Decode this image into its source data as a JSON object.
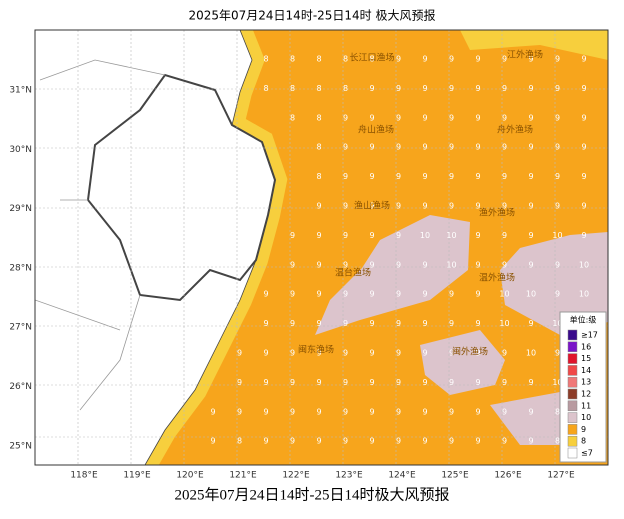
{
  "header": {
    "title": "2025年07月24日14时-25日14时 极大风预报"
  },
  "caption": "2025年07月24日14时-25日14时极大风预报",
  "lon_labels": [
    "118°E",
    "119°E",
    "120°E",
    "121°E",
    "122°E",
    "123°E",
    "124°E",
    "125°E",
    "126°E",
    "127°E"
  ],
  "lat_labels": [
    "31°N",
    "30°N",
    "29°N",
    "28°N",
    "27°N",
    "26°N",
    "25°N"
  ],
  "zones": [
    "长江口渔场",
    "江外渔场",
    "舟山渔场",
    "舟外渔场",
    "渔山渔场",
    "渔外渔场",
    "温台渔场",
    "温外渔场",
    "闽东渔场",
    "闽外渔场"
  ],
  "grid_values": [
    [
      null,
      null,
      8,
      8,
      8,
      8,
      8,
      9,
      9,
      9,
      9,
      9,
      9,
      9,
      9
    ],
    [
      null,
      null,
      8,
      8,
      8,
      8,
      9,
      9,
      9,
      9,
      9,
      9,
      9,
      9,
      9
    ],
    [
      null,
      null,
      null,
      8,
      8,
      9,
      9,
      9,
      9,
      9,
      9,
      9,
      9,
      9,
      9
    ],
    [
      null,
      null,
      null,
      null,
      8,
      9,
      9,
      9,
      9,
      9,
      9,
      9,
      9,
      9,
      9
    ],
    [
      null,
      null,
      null,
      null,
      8,
      9,
      9,
      9,
      9,
      9,
      9,
      9,
      9,
      9,
      9
    ],
    [
      null,
      null,
      null,
      null,
      9,
      9,
      9,
      9,
      9,
      9,
      9,
      9,
      9,
      9,
      9
    ],
    [
      null,
      null,
      null,
      9,
      9,
      9,
      9,
      9,
      10,
      10,
      9,
      9,
      9,
      10,
      9
    ],
    [
      null,
      null,
      null,
      9,
      9,
      9,
      9,
      9,
      9,
      10,
      9,
      9,
      9,
      9,
      10
    ],
    [
      null,
      null,
      9,
      9,
      9,
      9,
      9,
      9,
      9,
      9,
      9,
      10,
      10,
      9,
      10
    ],
    [
      null,
      null,
      9,
      9,
      9,
      9,
      9,
      9,
      9,
      9,
      9,
      10,
      9,
      10,
      9
    ],
    [
      null,
      9,
      9,
      9,
      9,
      9,
      9,
      9,
      9,
      9,
      9,
      9,
      10,
      9,
      9
    ],
    [
      null,
      9,
      9,
      9,
      9,
      9,
      9,
      9,
      9,
      9,
      9,
      9,
      9,
      10,
      9
    ],
    [
      9,
      9,
      9,
      9,
      9,
      9,
      9,
      9,
      9,
      9,
      9,
      9,
      9,
      8,
      9
    ],
    [
      9,
      8,
      9,
      9,
      9,
      9,
      9,
      9,
      9,
      9,
      9,
      9,
      9,
      8,
      9
    ]
  ],
  "legend": {
    "title": "单位:级",
    "items": [
      {
        "label": "≥17",
        "color": "#3a0a8c"
      },
      {
        "label": "16",
        "color": "#7a14c8"
      },
      {
        "label": "15",
        "color": "#e0142c"
      },
      {
        "label": "14",
        "color": "#f04848"
      },
      {
        "label": "13",
        "color": "#f07878"
      },
      {
        "label": "12",
        "color": "#8c3c28"
      },
      {
        "label": "11",
        "color": "#b89aa0"
      },
      {
        "label": "10",
        "color": "#dcc4cc"
      },
      {
        "label": "9",
        "color": "#f7a51c"
      },
      {
        "label": "8",
        "color": "#f7cf3d"
      },
      {
        "label": "≤7",
        "color": "#ffffff"
      }
    ]
  }
}
